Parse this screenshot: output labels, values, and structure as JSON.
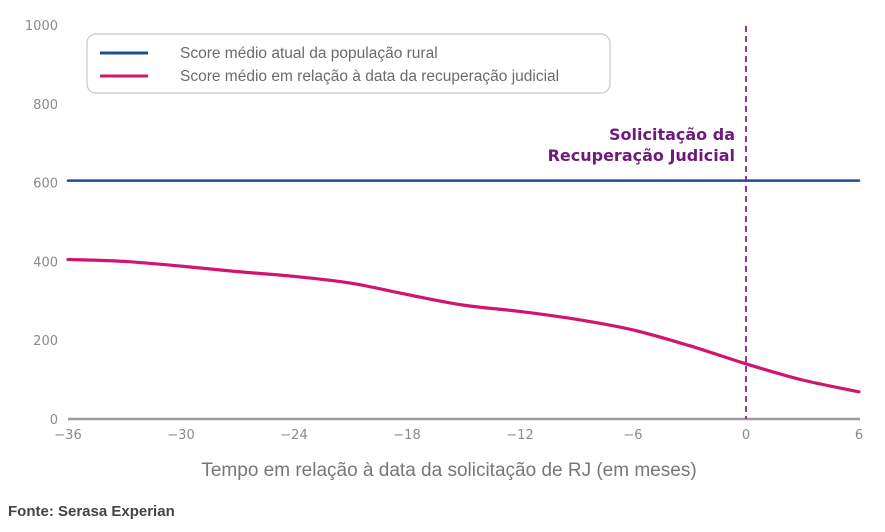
{
  "chart_data": {
    "type": "line",
    "title": "",
    "xlabel": "Tempo em relação à data da solicitação de RJ (em meses)",
    "ylabel": "",
    "xlim": [
      -36,
      6
    ],
    "ylim": [
      0,
      1000
    ],
    "xticks": [
      -36,
      -30,
      -24,
      -18,
      -12,
      -6,
      0,
      6
    ],
    "xtick_labels": [
      "−36",
      "−30",
      "−24",
      "−18",
      "−12",
      "−6",
      "0",
      "6"
    ],
    "yticks": [
      0,
      200,
      400,
      600,
      800,
      1000
    ],
    "ytick_labels": [
      "0",
      "200",
      "400",
      "600",
      "800",
      "1000"
    ],
    "grid": false,
    "legend_position": "top-left",
    "series": [
      {
        "name": "Score médio atual da população rural",
        "color": "#1f4e8c",
        "x": [
          -36,
          6
        ],
        "values": [
          605,
          605
        ]
      },
      {
        "name": "Score médio em relação à data da recuperação judicial",
        "color": "#d1146e",
        "x": [
          -36,
          -33,
          -30,
          -27,
          -24,
          -21,
          -18,
          -15,
          -12,
          -9,
          -6,
          -3,
          0,
          3,
          6
        ],
        "values": [
          405,
          400,
          388,
          374,
          362,
          345,
          316,
          289,
          273,
          253,
          226,
          186,
          140,
          99,
          69
        ]
      }
    ],
    "vline": {
      "x": 0,
      "color": "#7b2a85",
      "style": "dashed"
    },
    "annotation": [
      "Solicitação da",
      "Recuperação Judicial"
    ],
    "source": "Fonte: Serasa Experian"
  }
}
